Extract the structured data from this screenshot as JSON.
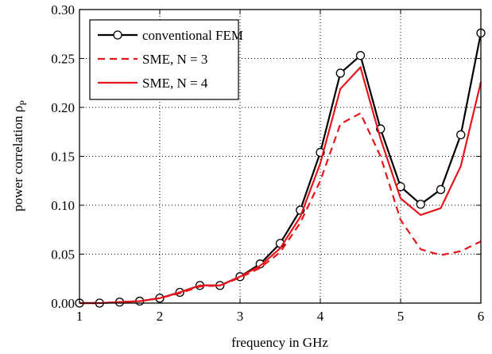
{
  "chart_data": {
    "type": "line",
    "xlabel": "frequency in GHz",
    "ylabel": "power correlation ρ",
    "ylabel_sub": "P",
    "x": [
      1,
      1.25,
      1.5,
      1.75,
      2,
      2.25,
      2.5,
      2.75,
      3,
      3.25,
      3.5,
      3.75,
      4,
      4.25,
      4.5,
      4.75,
      5,
      5.25,
      5.5,
      5.75,
      6
    ],
    "series": [
      {
        "name": "conventional FEM",
        "color": "#000000",
        "dash": "solid",
        "marker": "circle",
        "values": [
          0.0,
          0.0,
          0.001,
          0.002,
          0.005,
          0.011,
          0.018,
          0.018,
          0.027,
          0.04,
          0.061,
          0.095,
          0.154,
          0.235,
          0.253,
          0.178,
          0.119,
          0.101,
          0.116,
          0.172,
          0.276
        ]
      },
      {
        "name": "SME, N = 3",
        "color": "#e8141c",
        "dash": "dashed",
        "marker": "none",
        "values": [
          0.0,
          0.0,
          0.001,
          0.002,
          0.005,
          0.01,
          0.017,
          0.018,
          0.026,
          0.036,
          0.052,
          0.082,
          0.125,
          0.183,
          0.194,
          0.15,
          0.085,
          0.055,
          0.049,
          0.053,
          0.063
        ]
      },
      {
        "name": "SME, N = 4",
        "color": "#e8141c",
        "dash": "solid",
        "marker": "none",
        "values": [
          0.0,
          0.0,
          0.001,
          0.002,
          0.005,
          0.011,
          0.018,
          0.018,
          0.027,
          0.038,
          0.056,
          0.088,
          0.143,
          0.219,
          0.241,
          0.168,
          0.107,
          0.09,
          0.097,
          0.14,
          0.226
        ]
      }
    ],
    "xlim": [
      1,
      6
    ],
    "xticks": [
      1,
      2,
      3,
      4,
      5,
      6
    ],
    "ylim": [
      0,
      0.3
    ],
    "yticks": [
      {
        "value": 0,
        "label": "0.00"
      },
      {
        "value": 0.05,
        "label": "0.05"
      },
      {
        "value": 0.1,
        "label": "0.10"
      },
      {
        "value": 0.15,
        "label": "0.15"
      },
      {
        "value": 0.2,
        "label": "0.20"
      },
      {
        "value": 0.25,
        "label": "0.25"
      },
      {
        "value": 0.3,
        "label": "0.30"
      }
    ],
    "grid": true,
    "legend": "upper left"
  }
}
